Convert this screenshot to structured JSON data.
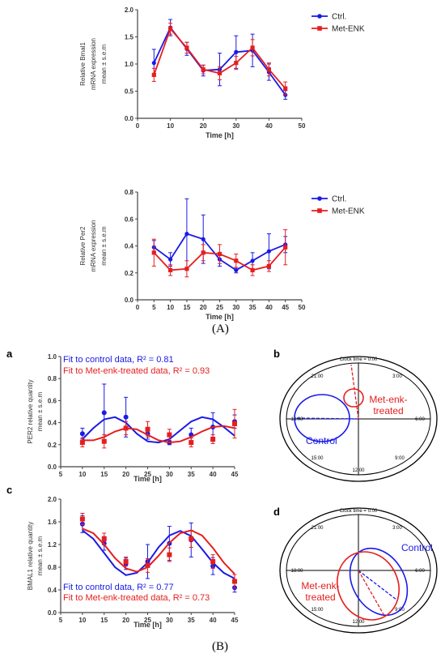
{
  "colors": {
    "ctrl": "#1a1ae6",
    "met": "#e61e1e",
    "axis": "#444444"
  },
  "captions": {
    "A": "(A)",
    "B": "(B)"
  },
  "chart_data": [
    {
      "id": "bmal1-top",
      "type": "line",
      "ylabel_lines": [
        "Relative Bmal1",
        "mRNA expression",
        "mean ± s.e.m"
      ],
      "xlabel": "Time [h]",
      "xlim": [
        0,
        50
      ],
      "ylim": [
        0,
        2.0
      ],
      "xticks": [
        0,
        10,
        20,
        30,
        40,
        50
      ],
      "yticks": [
        0.0,
        0.5,
        1.0,
        1.5,
        2.0
      ],
      "ytick_labels": [
        "0.0",
        "0.5",
        "1.0",
        "1.5",
        "2.0"
      ],
      "legend": {
        "position": "top-right",
        "entries": [
          "Ctrl.",
          "Met-ENK"
        ]
      },
      "series": [
        {
          "name": "Ctrl.",
          "color_key": "ctrl",
          "marker": "circle",
          "x": [
            5,
            10,
            15,
            20,
            25,
            30,
            35,
            40,
            45
          ],
          "y": [
            1.02,
            1.67,
            1.28,
            0.88,
            0.9,
            1.22,
            1.25,
            0.85,
            0.43
          ],
          "err": [
            0.25,
            0.15,
            0.12,
            0.1,
            0.3,
            0.3,
            0.3,
            0.15,
            0.08
          ]
        },
        {
          "name": "Met-ENK",
          "color_key": "met",
          "marker": "square",
          "x": [
            5,
            10,
            15,
            20,
            25,
            30,
            35,
            40,
            45
          ],
          "y": [
            0.8,
            1.65,
            1.3,
            0.9,
            0.83,
            1.02,
            1.3,
            0.9,
            0.55
          ],
          "err": [
            0.12,
            0.1,
            0.1,
            0.08,
            0.12,
            0.12,
            0.15,
            0.12,
            0.12
          ]
        }
      ]
    },
    {
      "id": "per2-top",
      "type": "line",
      "ylabel_lines": [
        "Relative Per2",
        "mRNA expression",
        "mean ± s.e.m"
      ],
      "xlabel": "Time [h]",
      "xlim": [
        0,
        50
      ],
      "ylim": [
        0,
        0.8
      ],
      "xticks": [
        0,
        5,
        10,
        15,
        20,
        25,
        30,
        35,
        40,
        45,
        50
      ],
      "yticks": [
        0.0,
        0.2,
        0.4,
        0.6,
        0.8
      ],
      "ytick_labels": [
        "0.0",
        "0.2",
        "0.4",
        "0.6",
        "0.8"
      ],
      "legend": {
        "position": "top-right",
        "entries": [
          "Ctrl.",
          "Met-ENK"
        ]
      },
      "series": [
        {
          "name": "Ctrl.",
          "color_key": "ctrl",
          "marker": "circle",
          "x": [
            5,
            10,
            15,
            20,
            25,
            30,
            35,
            40,
            45
          ],
          "y": [
            0.39,
            0.3,
            0.49,
            0.45,
            0.3,
            0.22,
            0.29,
            0.36,
            0.41
          ],
          "err": [
            0.05,
            0.05,
            0.26,
            0.18,
            0.05,
            0.02,
            0.06,
            0.13,
            0.06
          ]
        },
        {
          "name": "Met-ENK",
          "color_key": "met",
          "marker": "square",
          "x": [
            5,
            10,
            15,
            20,
            25,
            30,
            35,
            40,
            45
          ],
          "y": [
            0.35,
            0.22,
            0.23,
            0.35,
            0.34,
            0.29,
            0.22,
            0.25,
            0.39
          ],
          "err": [
            0.1,
            0.04,
            0.06,
            0.06,
            0.07,
            0.05,
            0.04,
            0.04,
            0.13
          ]
        }
      ]
    },
    {
      "id": "per2-fit",
      "panel_letter": "a",
      "type": "line",
      "ylabel_lines": [
        "PER2 relative quantity",
        "mean ± s.e.m"
      ],
      "xlabel": "Time [h]",
      "xlim": [
        5,
        45
      ],
      "ylim": [
        0,
        1.0
      ],
      "xticks": [
        5,
        10,
        15,
        20,
        25,
        30,
        35,
        40,
        45
      ],
      "yticks": [
        0.0,
        0.2,
        0.4,
        0.6,
        0.8,
        1.0
      ],
      "ytick_labels": [
        "0.0",
        "0.2",
        "0.4",
        "0.6",
        "0.8",
        "1.0"
      ],
      "fit_labels": [
        {
          "text": "Fit to control data, R² = 0.81",
          "color_key": "ctrl",
          "position": "top-left"
        },
        {
          "text": "Fit to Met-enk-treated data, R² = 0.93",
          "color_key": "met",
          "position": "top-left"
        }
      ],
      "series": [
        {
          "name": "control",
          "color_key": "ctrl",
          "marker": "circle",
          "x": [
            10,
            15,
            20,
            25,
            30,
            35,
            40,
            45
          ],
          "y": [
            0.3,
            0.49,
            0.45,
            0.3,
            0.22,
            0.29,
            0.36,
            0.41
          ],
          "err": [
            0.05,
            0.26,
            0.18,
            0.05,
            0.02,
            0.06,
            0.13,
            0.06
          ],
          "fit_x": [
            10,
            12.5,
            15,
            17.5,
            20,
            22.5,
            25,
            27.5,
            30,
            32.5,
            35,
            37.5,
            40,
            42.5,
            45
          ],
          "fit_y": [
            0.25,
            0.35,
            0.43,
            0.45,
            0.4,
            0.3,
            0.23,
            0.22,
            0.25,
            0.33,
            0.41,
            0.45,
            0.43,
            0.36,
            0.28
          ]
        },
        {
          "name": "Met-enk-treated",
          "color_key": "met",
          "marker": "square",
          "x": [
            10,
            15,
            20,
            25,
            30,
            35,
            40,
            45
          ],
          "y": [
            0.22,
            0.23,
            0.35,
            0.34,
            0.29,
            0.22,
            0.25,
            0.39
          ],
          "err": [
            0.04,
            0.06,
            0.06,
            0.07,
            0.05,
            0.04,
            0.04,
            0.13
          ],
          "fit_x": [
            10,
            12.5,
            15,
            17.5,
            20,
            22.5,
            25,
            27.5,
            30,
            32.5,
            35,
            37.5,
            40,
            42.5,
            45
          ],
          "fit_y": [
            0.24,
            0.24,
            0.27,
            0.32,
            0.35,
            0.34,
            0.29,
            0.24,
            0.22,
            0.23,
            0.27,
            0.32,
            0.36,
            0.37,
            0.35
          ]
        }
      ]
    },
    {
      "id": "bmal1-fit",
      "panel_letter": "c",
      "type": "line",
      "ylabel_lines": [
        "BMAL1 relative quantity",
        "mean ± s.e.m"
      ],
      "xlabel": "Time [h]",
      "xlim": [
        5,
        45
      ],
      "ylim": [
        0,
        2.0
      ],
      "xticks": [
        5,
        10,
        15,
        20,
        25,
        30,
        35,
        40,
        45
      ],
      "yticks": [
        0.0,
        0.4,
        0.8,
        1.2,
        1.6,
        2.0
      ],
      "ytick_labels": [
        "0.0",
        "0.4",
        "0.8",
        "1.2",
        "1.6",
        "2.0"
      ],
      "fit_labels": [
        {
          "text": "Fit to control data, R² = 0.77",
          "color_key": "ctrl",
          "position": "bottom-left"
        },
        {
          "text": "Fit to Met-enk-treated data, R² = 0.73",
          "color_key": "met",
          "position": "bottom-left"
        }
      ],
      "series": [
        {
          "name": "control",
          "color_key": "ctrl",
          "marker": "circle",
          "x": [
            10,
            15,
            20,
            25,
            30,
            35,
            40,
            45
          ],
          "y": [
            1.56,
            1.22,
            0.86,
            0.9,
            1.22,
            1.28,
            0.82,
            0.44
          ],
          "err": [
            0.15,
            0.12,
            0.1,
            0.3,
            0.3,
            0.3,
            0.15,
            0.08
          ],
          "fit_x": [
            10,
            12.5,
            15,
            17.5,
            20,
            22.5,
            25,
            27.5,
            30,
            32.5,
            35,
            37.5,
            40,
            42.5,
            45
          ],
          "fit_y": [
            1.45,
            1.3,
            1.05,
            0.8,
            0.66,
            0.7,
            0.88,
            1.15,
            1.36,
            1.44,
            1.35,
            1.12,
            0.88,
            0.7,
            0.6
          ]
        },
        {
          "name": "Met-enk-treated",
          "color_key": "met",
          "marker": "square",
          "x": [
            10,
            15,
            20,
            25,
            30,
            35,
            40,
            45
          ],
          "y": [
            1.65,
            1.3,
            0.9,
            0.83,
            1.02,
            1.3,
            0.9,
            0.55
          ],
          "err": [
            0.1,
            0.1,
            0.08,
            0.12,
            0.12,
            0.15,
            0.12,
            0.12
          ],
          "fit_x": [
            10,
            12.5,
            15,
            17.5,
            20,
            22.5,
            25,
            27.5,
            30,
            32.5,
            35,
            37.5,
            40,
            42.5,
            45
          ],
          "fit_y": [
            1.48,
            1.4,
            1.2,
            0.96,
            0.78,
            0.72,
            0.8,
            1.0,
            1.23,
            1.4,
            1.45,
            1.36,
            1.14,
            0.88,
            0.68
          ]
        }
      ]
    }
  ],
  "phase_plots": [
    {
      "id": "per2-phase",
      "panel_letter": "b",
      "clock_labels": {
        "top": "Clock time = 0.00",
        "t3": "3:00",
        "t6": "6:00",
        "t9": "9:00",
        "t12": "12:00",
        "t15": "15:00",
        "t18": "18:00",
        "t21": "21:00"
      },
      "control_label": "Control",
      "treated_label_lines": [
        "Met-enk-",
        "treated"
      ]
    },
    {
      "id": "bmal1-phase",
      "panel_letter": "d",
      "clock_labels": {
        "top": "Clock time = 0.00",
        "t3": "3:00",
        "t6": "6:00",
        "t9": "9:00",
        "t12": "12:00",
        "t15": "15:00",
        "t18": "18:00",
        "t21": "21:00"
      },
      "control_label": "Control",
      "treated_label_lines": [
        "Met-enk-",
        "treated"
      ]
    }
  ]
}
